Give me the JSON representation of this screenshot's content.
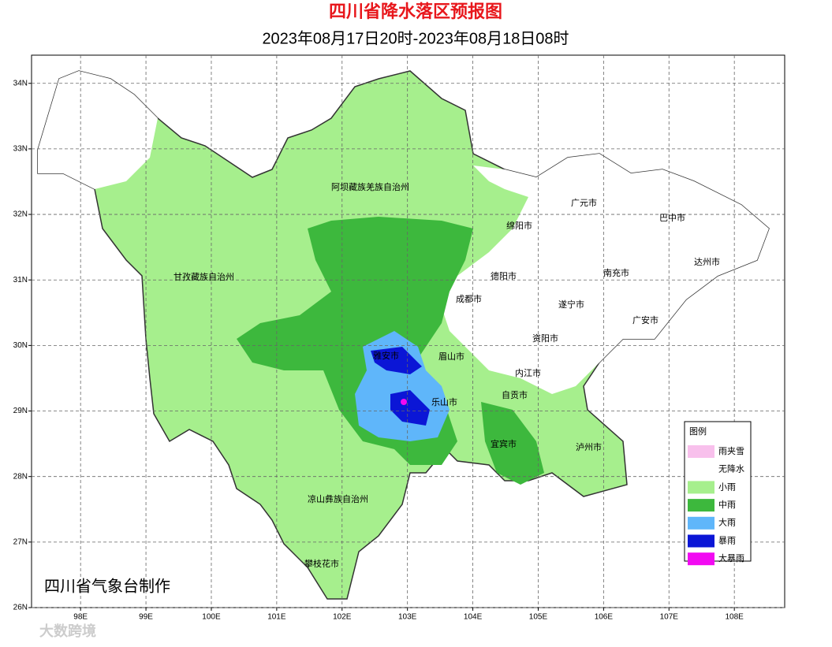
{
  "header": {
    "title": "四川省降水落区预报图",
    "subtitle": "2023年08月17日20时-2023年08月18日08时"
  },
  "map": {
    "xlim": [
      97.25,
      108.77
    ],
    "ylim": [
      26,
      34.43
    ],
    "xticks": [
      {
        "value": 98,
        "label": "98E"
      },
      {
        "value": 99,
        "label": "99E"
      },
      {
        "value": 100,
        "label": "100E"
      },
      {
        "value": 101,
        "label": "101E"
      },
      {
        "value": 102,
        "label": "102E"
      },
      {
        "value": 103,
        "label": "103E"
      },
      {
        "value": 104,
        "label": "104E"
      },
      {
        "value": 105,
        "label": "105E"
      },
      {
        "value": 106,
        "label": "106E"
      },
      {
        "value": 107,
        "label": "107E"
      },
      {
        "value": 108,
        "label": "108E"
      }
    ],
    "yticks": [
      {
        "value": 26,
        "label": "26N"
      },
      {
        "value": 27,
        "label": "27N"
      },
      {
        "value": 28,
        "label": "28N"
      },
      {
        "value": 29,
        "label": "29N"
      },
      {
        "value": 30,
        "label": "30N"
      },
      {
        "value": 31,
        "label": "31N"
      },
      {
        "value": 32,
        "label": "32N"
      },
      {
        "value": 33,
        "label": "33N"
      },
      {
        "value": 34,
        "label": "34N"
      }
    ],
    "places": [
      "阿坝藏族羌族自治州",
      "甘孜藏族自治州",
      "凉山彝族自治州",
      "攀枝花市",
      "广元市",
      "巴中市",
      "绵阳市",
      "达州市",
      "德阳市",
      "南充市",
      "成都市",
      "遂宁市",
      "广安市",
      "资阳市",
      "雅安市",
      "眉山市",
      "内江市",
      "自贡市",
      "乐山市",
      "宜宾市",
      "泸州市"
    ],
    "legend": {
      "title": "图例",
      "items": [
        {
          "label": "雨夹雪",
          "color": "#f8c0ec"
        },
        {
          "label": "无降水",
          "color": "#ffffff"
        },
        {
          "label": "小雨",
          "color": "#a6ef8d"
        },
        {
          "label": "中雨",
          "color": "#3db83d"
        },
        {
          "label": "大雨",
          "color": "#5fb6fa"
        },
        {
          "label": "暴雨",
          "color": "#0b16d6"
        },
        {
          "label": "大暴雨",
          "color": "#f20af2"
        }
      ]
    },
    "credit": "四川省气象台制作"
  },
  "watermark": "大数跨境"
}
